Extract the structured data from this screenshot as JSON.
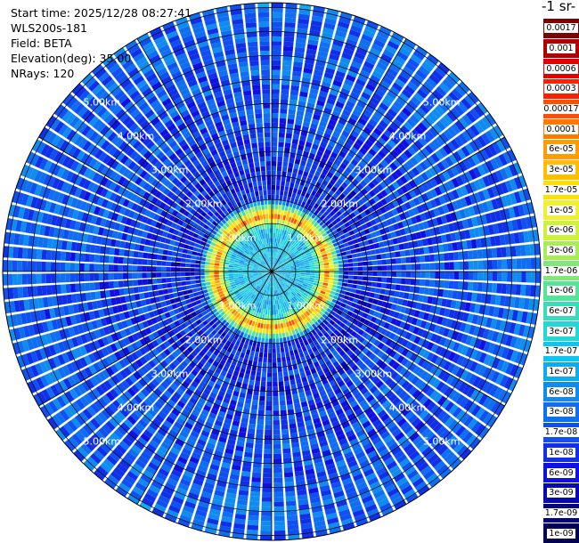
{
  "info": {
    "start_time": "Start time: 2025/12/28 08:27:41",
    "instrument": "WLS200s-181",
    "field": "Field: BETA",
    "elevation": "Elevation(deg): 35.00",
    "nrays": "NRays: 120"
  },
  "colorbar": {
    "title": "-1 sr-",
    "labels": [
      "0.0017",
      "0.001",
      "0.0006",
      "0.0003",
      "0.00017",
      "0.0001",
      "6e-05",
      "3e-05",
      "1.7e-05",
      "1e-05",
      "6e-06",
      "3e-06",
      "1.7e-06",
      "1e-06",
      "6e-07",
      "3e-07",
      "1.7e-07",
      "1e-07",
      "6e-08",
      "3e-08",
      "1.7e-08",
      "1e-08",
      "6e-09",
      "3e-09",
      "1.7e-09",
      "1e-09"
    ],
    "colors": [
      "#800000",
      "#b00000",
      "#e00000",
      "#ff2000",
      "#ff5000",
      "#ff7800",
      "#ff9c00",
      "#ffbf00",
      "#ffe000",
      "#f0f030",
      "#d0f040",
      "#a8ec58",
      "#80e878",
      "#58e498",
      "#38dcb8",
      "#20d8d8",
      "#10c4ec",
      "#10aaf0",
      "#108cf0",
      "#106ef0",
      "#1050f0",
      "#1030e8",
      "#1010e0",
      "#0808b0",
      "#040480",
      "#020250"
    ]
  },
  "chart_data": {
    "type": "heatmap",
    "projection": "polar PPI",
    "field": "BETA",
    "elevation_deg": 35.0,
    "n_rays": 120,
    "range_ring_labels": [
      "1.00km",
      "2.00km",
      "3.00km",
      "4.00km",
      "5.00km"
    ],
    "range_rings_km": [
      1,
      2,
      3,
      4,
      5
    ],
    "max_range_km": 5.6,
    "color_scale": "log",
    "color_range": [
      1e-09,
      0.0017
    ],
    "profile": [
      {
        "range_km": 0.0,
        "value": 1.7e-07
      },
      {
        "range_km": 0.9,
        "value": 1.7e-07
      },
      {
        "range_km": 1.05,
        "value": 6e-06
      },
      {
        "range_km": 1.15,
        "value": 6e-05
      },
      {
        "range_km": 1.3,
        "value": 6e-06
      },
      {
        "range_km": 1.5,
        "value": 1e-08
      },
      {
        "range_km": 2.0,
        "value": 1e-08
      },
      {
        "range_km": 3.0,
        "value": 1.7e-08
      },
      {
        "range_km": 5.6,
        "value": 3e-08
      }
    ],
    "grid": true
  }
}
